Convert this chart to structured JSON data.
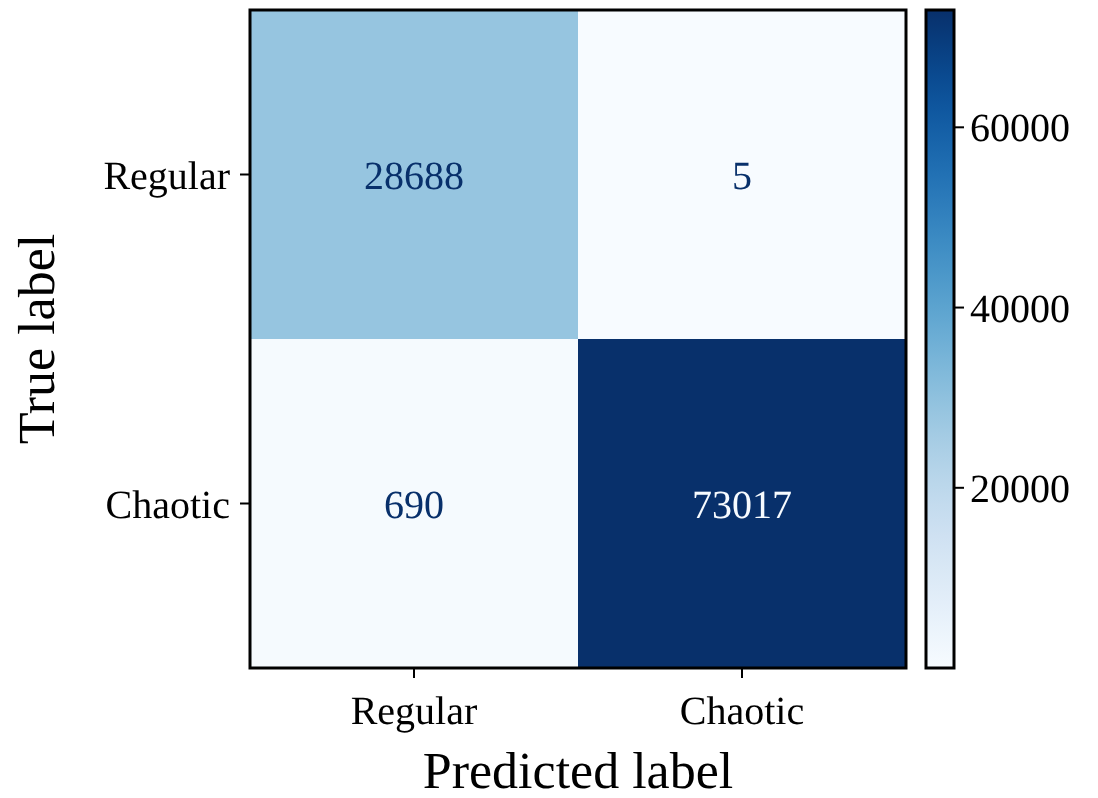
{
  "chart_data": {
    "type": "heatmap",
    "xlabel": "Predicted label",
    "ylabel": "True label",
    "categories": [
      "Regular",
      "Chaotic"
    ],
    "y_categories": [
      "Regular",
      "Chaotic"
    ],
    "cells": [
      [
        28688,
        5
      ],
      [
        690,
        73017
      ]
    ],
    "data_labels": true,
    "clim": [
      5,
      73017
    ],
    "cticks": [
      20000,
      40000,
      60000
    ]
  }
}
